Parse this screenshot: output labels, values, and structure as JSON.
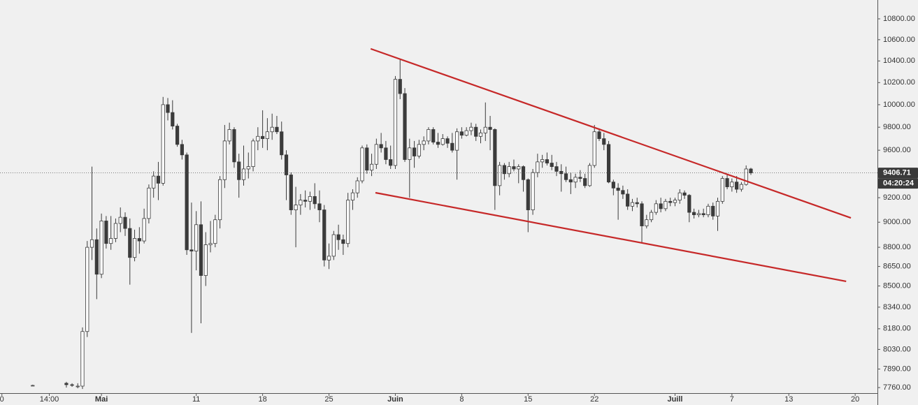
{
  "chart_data": {
    "type": "candlestick",
    "log_scale": true,
    "grid": false,
    "up_color": "#ffffff",
    "down_color": "#3b3b3b",
    "outline_color": "#3b3b3b",
    "ylim": [
      7678,
      10984
    ],
    "xlim": [
      -17.4,
      167.7
    ],
    "yticks": [
      {
        "value": 7760,
        "label": "7760.00"
      },
      {
        "value": 7890,
        "label": "7890.00"
      },
      {
        "value": 8030,
        "label": "8030.00"
      },
      {
        "value": 8180,
        "label": "8180.00"
      },
      {
        "value": 8340,
        "label": "8340.00"
      },
      {
        "value": 8500,
        "label": "8500.00"
      },
      {
        "value": 8650,
        "label": "8650.00"
      },
      {
        "value": 8800,
        "label": "8800.00"
      },
      {
        "value": 9000,
        "label": "9000.00"
      },
      {
        "value": 9200,
        "label": "9200.00"
      },
      {
        "value": 9600,
        "label": "9600.00"
      },
      {
        "value": 9800,
        "label": "9800.00"
      },
      {
        "value": 10000,
        "label": "10000.00"
      },
      {
        "value": 10200,
        "label": "10200.00"
      },
      {
        "value": 10400,
        "label": "10400.00"
      },
      {
        "value": 10600,
        "label": "10600.00"
      },
      {
        "value": 10800,
        "label": "10800.00"
      }
    ],
    "xticks": [
      {
        "value": -17,
        "label": "0"
      },
      {
        "value": -7,
        "label": "14:00"
      },
      {
        "value": 4,
        "label": "Mai"
      },
      {
        "value": 24,
        "label": "11"
      },
      {
        "value": 38,
        "label": "18"
      },
      {
        "value": 52,
        "label": "25"
      },
      {
        "value": 66,
        "label": "Juin"
      },
      {
        "value": 80,
        "label": "8"
      },
      {
        "value": 94,
        "label": "15"
      },
      {
        "value": 108,
        "label": "22"
      },
      {
        "value": 125,
        "label": "Juill"
      },
      {
        "value": 137,
        "label": "7"
      },
      {
        "value": 149,
        "label": "13"
      },
      {
        "value": 163,
        "label": "20"
      }
    ],
    "x": [
      -10.5,
      -3.4,
      -2.2,
      -1,
      0,
      1,
      2,
      3,
      4,
      5,
      6,
      7,
      8,
      9,
      10,
      11,
      12,
      13,
      14,
      15,
      16,
      17,
      18,
      19,
      20,
      21,
      22,
      23,
      24,
      25,
      26,
      27,
      28,
      29,
      30,
      31,
      32,
      33,
      34,
      35,
      36,
      37,
      38,
      39,
      40,
      41,
      42,
      43,
      44,
      45,
      46,
      47,
      48,
      49,
      50,
      51,
      52,
      53,
      54,
      55,
      56,
      57,
      58,
      59,
      60,
      61,
      62,
      63,
      64,
      65,
      66,
      67,
      68,
      69,
      70,
      71,
      72,
      73,
      74,
      75,
      76,
      77,
      78,
      79,
      80,
      81,
      82,
      83,
      84,
      85,
      86,
      87,
      88,
      89,
      90,
      91,
      92,
      93,
      94,
      95,
      96,
      97,
      98,
      99,
      100,
      101,
      102,
      103,
      104,
      105,
      106,
      107,
      108,
      109,
      110,
      111,
      112,
      113,
      114,
      115,
      116,
      117,
      118,
      119,
      120,
      121,
      122,
      123,
      124,
      125,
      126,
      127,
      128,
      129,
      130,
      131,
      132,
      133,
      134,
      135,
      136,
      137,
      138,
      139,
      140,
      141
    ],
    "open": [
      7775,
      7790,
      7780,
      7770,
      7770,
      8160,
      8800,
      8860,
      8590,
      9010,
      8830,
      8870,
      8990,
      9040,
      8950,
      8720,
      8870,
      8850,
      9030,
      9280,
      9380,
      9320,
      10000,
      9930,
      9810,
      9650,
      9560,
      8780,
      8770,
      8980,
      8580,
      8820,
      8830,
      9020,
      9350,
      9680,
      9780,
      9500,
      9350,
      9440,
      9460,
      9680,
      9720,
      9700,
      9760,
      9800,
      9760,
      9560,
      9390,
      9100,
      9140,
      9180,
      9170,
      9210,
      9150,
      9100,
      8700,
      8730,
      8900,
      8860,
      8830,
      9180,
      9240,
      9340,
      9620,
      9430,
      9480,
      9650,
      9620,
      9520,
      9470,
      10230,
      10100,
      9520,
      9620,
      9550,
      9650,
      9680,
      9780,
      9670,
      9650,
      9700,
      9660,
      9600,
      9760,
      9730,
      9770,
      9800,
      9720,
      9750,
      9800,
      9780,
      9300,
      9470,
      9400,
      9460,
      9440,
      9460,
      9350,
      9100,
      9410,
      9500,
      9520,
      9490,
      9460,
      9420,
      9400,
      9350,
      9330,
      9370,
      9360,
      9300,
      9470,
      9760,
      9700,
      9650,
      9330,
      9280,
      9260,
      9230,
      9130,
      9160,
      9150,
      8970,
      9020,
      9080,
      9150,
      9110,
      9170,
      9160,
      9180,
      9240,
      9220,
      9080,
      9060,
      9070,
      9060,
      9130,
      9050,
      9170,
      9360,
      9290,
      9330,
      9270,
      9310,
      9440
    ],
    "high": [
      7780,
      7800,
      7790,
      7790,
      8190,
      8850,
      9460,
      8950,
      9070,
      9050,
      9050,
      9030,
      9120,
      9080,
      9030,
      8940,
      8960,
      9110,
      9310,
      9420,
      9500,
      10070,
      10060,
      10040,
      9830,
      9690,
      9580,
      9160,
      9090,
      9170,
      8920,
      9010,
      9060,
      9380,
      9820,
      9840,
      9800,
      9570,
      9640,
      9580,
      9700,
      9800,
      9950,
      9880,
      9920,
      9900,
      9850,
      9600,
      9410,
      9290,
      9230,
      9260,
      9250,
      9320,
      9260,
      9140,
      8830,
      8930,
      8980,
      8900,
      9240,
      9270,
      9370,
      9640,
      9650,
      9570,
      9700,
      9750,
      9680,
      9640,
      10260,
      10420,
      10150,
      9700,
      9680,
      9690,
      9720,
      9800,
      9800,
      9750,
      9740,
      9720,
      9750,
      9790,
      9800,
      9800,
      9840,
      9830,
      9780,
      10020,
      9900,
      9790,
      9500,
      9490,
      9500,
      9520,
      9480,
      9470,
      9360,
      9440,
      9570,
      9560,
      9580,
      9560,
      9500,
      9480,
      9460,
      9410,
      9400,
      9430,
      9400,
      9490,
      9820,
      9790,
      9750,
      9680,
      9350,
      9320,
      9300,
      9270,
      9190,
      9200,
      9170,
      9060,
      9100,
      9180,
      9200,
      9190,
      9200,
      9200,
      9270,
      9260,
      9230,
      9110,
      9100,
      9110,
      9150,
      9160,
      9200,
      9380,
      9390,
      9360,
      9380,
      9330,
      9470,
      9450
    ],
    "low": [
      7770,
      7760,
      7765,
      7755,
      7750,
      8120,
      8700,
      8400,
      8560,
      8790,
      8780,
      8840,
      8920,
      8890,
      8510,
      8690,
      8750,
      8830,
      8990,
      9200,
      9180,
      9300,
      9860,
      9780,
      9630,
      9520,
      8740,
      8150,
      8620,
      8220,
      8500,
      8760,
      8800,
      8950,
      9280,
      9650,
      9450,
      9200,
      9300,
      9360,
      9420,
      9600,
      9620,
      9600,
      9690,
      9740,
      9520,
      9180,
      9060,
      8800,
      9060,
      9120,
      9100,
      9110,
      9000,
      8650,
      8630,
      8700,
      8780,
      8740,
      8800,
      9100,
      9200,
      9320,
      9400,
      9380,
      9440,
      9580,
      9480,
      9440,
      9440,
      10050,
      9500,
      9200,
      9450,
      9530,
      9600,
      9650,
      9650,
      9620,
      9640,
      9620,
      9580,
      9350,
      9700,
      9720,
      9730,
      9680,
      9660,
      9680,
      9600,
      9100,
      9220,
      9350,
      9370,
      9420,
      9320,
      9250,
      8920,
      9060,
      9370,
      9450,
      9470,
      9430,
      9380,
      9250,
      9330,
      9230,
      9280,
      9330,
      9280,
      9290,
      9450,
      9680,
      9600,
      9320,
      9220,
      9020,
      9190,
      9100,
      9090,
      9120,
      8830,
      8950,
      9000,
      9060,
      9080,
      9090,
      9130,
      9130,
      9150,
      9190,
      9000,
      9030,
      9040,
      9040,
      9040,
      9020,
      8930,
      9150,
      9270,
      9250,
      9240,
      9250,
      9300,
      9390
    ],
    "close": [
      7775,
      7780,
      7775,
      7770,
      8160,
      8800,
      8860,
      8590,
      9010,
      8830,
      8870,
      8990,
      9040,
      8950,
      8720,
      8870,
      8850,
      9030,
      9280,
      9380,
      9320,
      10000,
      9930,
      9810,
      9650,
      9560,
      8780,
      8770,
      8980,
      8580,
      8820,
      8830,
      9020,
      9350,
      9680,
      9780,
      9500,
      9350,
      9440,
      9460,
      9680,
      9720,
      9700,
      9760,
      9800,
      9760,
      9560,
      9390,
      9100,
      9140,
      9180,
      9170,
      9210,
      9150,
      9100,
      8700,
      8730,
      8900,
      8860,
      8830,
      9180,
      9240,
      9340,
      9620,
      9430,
      9480,
      9650,
      9620,
      9520,
      9470,
      10230,
      10100,
      9520,
      9620,
      9550,
      9650,
      9680,
      9780,
      9670,
      9650,
      9700,
      9660,
      9600,
      9760,
      9730,
      9770,
      9800,
      9720,
      9750,
      9800,
      9780,
      9300,
      9470,
      9400,
      9460,
      9440,
      9460,
      9350,
      9100,
      9410,
      9500,
      9520,
      9490,
      9460,
      9420,
      9400,
      9350,
      9330,
      9370,
      9360,
      9300,
      9470,
      9760,
      9700,
      9650,
      9330,
      9280,
      9260,
      9230,
      9130,
      9160,
      9150,
      8970,
      9020,
      9080,
      9150,
      9110,
      9170,
      9160,
      9180,
      9240,
      9220,
      9080,
      9060,
      9070,
      9060,
      9130,
      9050,
      9170,
      9360,
      9290,
      9330,
      9270,
      9310,
      9440,
      9406.71
    ],
    "last_price_label": "9406.71",
    "countdown": "04:20:24",
    "trendlines": [
      {
        "color": "#c62828",
        "x": [
          60.8,
          162.1
        ],
        "y": [
          10514,
          9035
        ]
      },
      {
        "color": "#c62828",
        "x": [
          61.8,
          161.1
        ],
        "y": [
          9241,
          8535
        ]
      }
    ]
  }
}
